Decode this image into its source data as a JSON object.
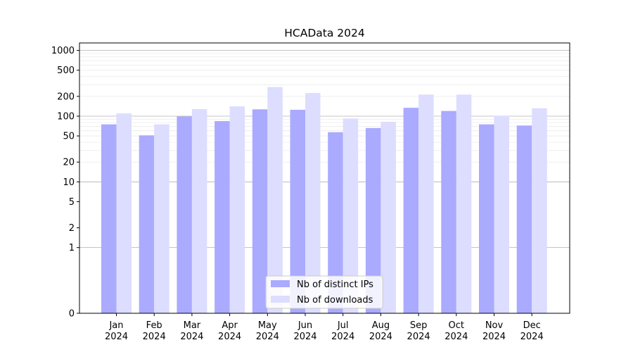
{
  "chart_data": {
    "type": "bar",
    "title": "HCAData 2024",
    "xlabel": "",
    "ylabel": "",
    "yscale": "symlog",
    "ylim": [
      0,
      1300
    ],
    "yticks": [
      {
        "value": 0,
        "label": "0"
      },
      {
        "value": 1,
        "label": "1"
      },
      {
        "value": 2,
        "label": "2"
      },
      {
        "value": 5,
        "label": "5"
      },
      {
        "value": 10,
        "label": "10"
      },
      {
        "value": 20,
        "label": "20"
      },
      {
        "value": 50,
        "label": "50"
      },
      {
        "value": 100,
        "label": "100"
      },
      {
        "value": 200,
        "label": "200"
      },
      {
        "value": 500,
        "label": "500"
      },
      {
        "value": 1000,
        "label": "1000"
      }
    ],
    "grid": true,
    "legend_position": "lower center",
    "categories": [
      {
        "month": "Jan",
        "year": "2024"
      },
      {
        "month": "Feb",
        "year": "2024"
      },
      {
        "month": "Mar",
        "year": "2024"
      },
      {
        "month": "Apr",
        "year": "2024"
      },
      {
        "month": "May",
        "year": "2024"
      },
      {
        "month": "Jun",
        "year": "2024"
      },
      {
        "month": "Jul",
        "year": "2024"
      },
      {
        "month": "Aug",
        "year": "2024"
      },
      {
        "month": "Sep",
        "year": "2024"
      },
      {
        "month": "Oct",
        "year": "2024"
      },
      {
        "month": "Nov",
        "year": "2024"
      },
      {
        "month": "Dec",
        "year": "2024"
      }
    ],
    "series": [
      {
        "name": "Nb of distinct IPs",
        "color": "#aaaaff",
        "values": [
          75,
          51,
          99,
          84,
          127,
          125,
          57,
          66,
          134,
          120,
          75,
          72
        ]
      },
      {
        "name": "Nb of downloads",
        "color": "#ddddff",
        "values": [
          110,
          75,
          128,
          141,
          277,
          225,
          92,
          82,
          213,
          213,
          102,
          132
        ]
      }
    ]
  }
}
